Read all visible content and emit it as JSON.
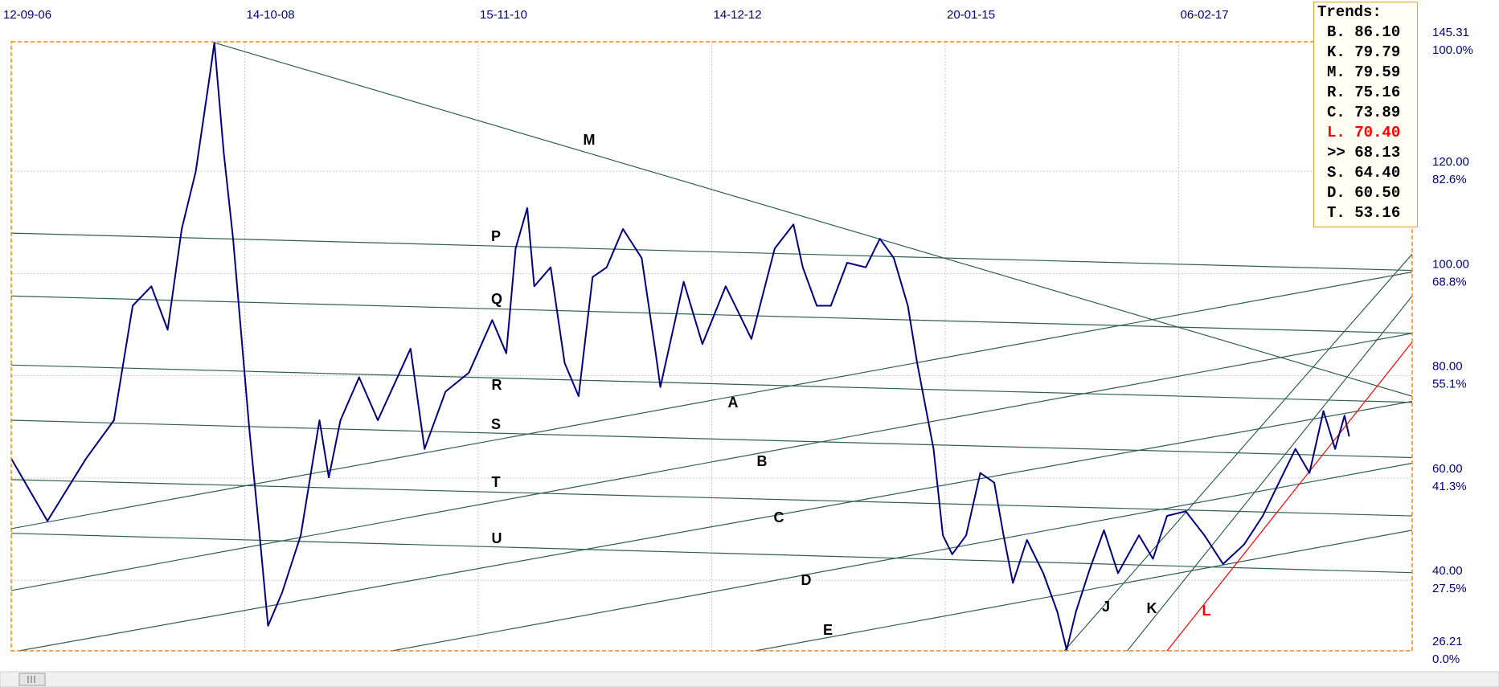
{
  "chart_data": {
    "type": "line",
    "x": [
      0,
      15.5,
      32,
      44,
      52,
      60,
      67,
      73,
      79,
      85,
      87,
      91,
      95,
      102,
      106,
      110,
      116,
      124,
      132,
      136,
      141,
      149,
      157,
      171,
      177,
      186,
      196,
      206,
      212,
      216,
      221,
      224,
      231,
      237,
      243,
      249,
      255,
      262,
      270,
      276,
      278,
      288,
      296,
      306,
      317,
      327,
      335,
      339,
      345,
      351,
      358,
      366,
      372,
      378,
      384,
      388,
      395,
      399,
      403,
      409,
      415,
      421,
      425,
      429,
      435,
      442,
      448,
      452,
      456,
      462,
      468,
      474,
      483,
      489,
      495,
      503,
      511,
      519,
      528,
      536,
      544,
      550,
      556,
      562,
      567,
      571,
      573
    ],
    "series": [
      {
        "color": "#000080",
        "values": [
          63.8,
          51.6,
          63.8,
          71.3,
          93.7,
          97.5,
          89.0,
          108.7,
          119.9,
          138.6,
          145.1,
          123.6,
          106.8,
          69.4,
          50.7,
          31.1,
          37.6,
          48.8,
          71.3,
          60.1,
          71.3,
          79.7,
          71.3,
          85.3,
          65.7,
          76.9,
          80.6,
          90.9,
          84.4,
          104.9,
          112.8,
          97.5,
          101.2,
          82.5,
          76.0,
          99.3,
          101.2,
          108.7,
          103.0,
          84.4,
          77.8,
          98.4,
          86.2,
          97.5,
          87.2,
          104.9,
          109.6,
          101.2,
          93.7,
          93.7,
          102.1,
          101.2,
          106.8,
          103.0,
          93.7,
          82.5,
          65.7,
          48.8,
          45.1,
          48.8,
          61.0,
          59.1,
          48.8,
          39.5,
          47.9,
          41.4,
          33.9,
          26.4,
          33.9,
          42.3,
          49.8,
          41.4,
          48.8,
          44.2,
          52.6,
          53.5,
          48.8,
          43.2,
          47.0,
          52.6,
          60.1,
          65.7,
          61.0,
          73.1,
          65.7,
          72.2,
          68.13
        ]
      }
    ],
    "xlim": [
      0,
      600
    ],
    "xticks": [
      {
        "value": 0,
        "label": "12-09-06"
      },
      {
        "value": 100,
        "label": "14-10-08"
      },
      {
        "value": 200,
        "label": "15-11-10"
      },
      {
        "value": 300,
        "label": "14-12-12"
      },
      {
        "value": 400,
        "label": "20-01-15"
      },
      {
        "value": 500,
        "label": "06-02-17"
      }
    ],
    "ylim": [
      26.21,
      145.31
    ],
    "yticks": [
      26.21,
      {
        "value": 40,
        "label": "40.00"
      },
      {
        "value": 60,
        "label": "60.00"
      },
      {
        "value": 80,
        "label": "80.00"
      },
      {
        "value": 100,
        "label": "100.00"
      },
      {
        "value": 120,
        "label": "120.00"
      },
      145.31
    ],
    "ytick_percent": [
      "0.0%",
      "27.5%",
      "41.3%",
      "55.1%",
      "68.8%",
      "82.6%",
      "100.0%"
    ],
    "grid": true,
    "trendlines": [
      {
        "label": "M",
        "color": "#2f5f50",
        "points": [
          [
            87.2,
            145.1
          ],
          [
            600,
            76.0
          ]
        ]
      },
      {
        "label": "P",
        "color": "#2f5f50",
        "points": [
          [
            0,
            107.9
          ],
          [
            600,
            100.6
          ]
        ]
      },
      {
        "label": "Q",
        "color": "#2f5f50",
        "points": [
          [
            0,
            95.6
          ],
          [
            600,
            88.3
          ]
        ]
      },
      {
        "label": "R",
        "color": "#2f5f50",
        "points": [
          [
            0,
            82.1
          ],
          [
            600,
            74.8
          ]
        ]
      },
      {
        "label": "S",
        "color": "#2f5f50",
        "points": [
          [
            0,
            71.3
          ],
          [
            600,
            64.0
          ]
        ]
      },
      {
        "label": "T",
        "color": "#2f5f50",
        "points": [
          [
            0,
            59.7
          ],
          [
            600,
            52.6
          ]
        ]
      },
      {
        "label": "U",
        "color": "#2f5f50",
        "points": [
          [
            0,
            49.2
          ],
          [
            600,
            41.5
          ]
        ]
      },
      {
        "label": "A",
        "color": "#2f5f50",
        "points": [
          [
            0,
            50.1
          ],
          [
            600,
            100.3
          ]
        ]
      },
      {
        "label": "B",
        "color": "#2f5f50",
        "points": [
          [
            0,
            38.0
          ],
          [
            600,
            88.3
          ]
        ]
      },
      {
        "label": "C",
        "color": "#2f5f50",
        "points": [
          [
            3.3,
            26.21
          ],
          [
            600,
            75.0
          ]
        ]
      },
      {
        "label": "D",
        "color": "#2f5f50",
        "points": [
          [
            163,
            26.21
          ],
          [
            600,
            62.9
          ]
        ]
      },
      {
        "label": "E",
        "color": "#2f5f50",
        "points": [
          [
            318.6,
            26.21
          ],
          [
            600,
            49.8
          ]
        ]
      },
      {
        "label": "J",
        "color": "#2f5f50",
        "points": [
          [
            451,
            26.21
          ],
          [
            600,
            103.8
          ]
        ]
      },
      {
        "label": "K",
        "color": "#2f5f50",
        "points": [
          [
            478,
            26.21
          ],
          [
            600,
            95.6
          ]
        ]
      },
      {
        "label": "L",
        "color": "#ff0000",
        "points": [
          [
            495,
            26.21
          ],
          [
            600,
            86.6
          ]
        ]
      }
    ],
    "trends_box": {
      "title": "Trends:",
      "rows": [
        {
          "key": "B.",
          "value": "86.10"
        },
        {
          "key": "K.",
          "value": "79.79"
        },
        {
          "key": "M.",
          "value": "79.59"
        },
        {
          "key": "R.",
          "value": "75.16"
        },
        {
          "key": "C.",
          "value": "73.89"
        },
        {
          "key": "L.",
          "value": "70.40",
          "color": "#ff0000"
        },
        {
          "key": ">>",
          "value": "68.13"
        },
        {
          "key": "S.",
          "value": "64.40"
        },
        {
          "key": "D.",
          "value": "60.50"
        },
        {
          "key": "T.",
          "value": "53.16"
        }
      ]
    }
  }
}
